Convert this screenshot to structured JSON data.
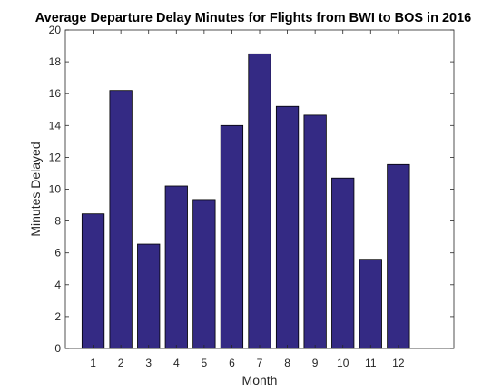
{
  "chart_data": {
    "type": "bar",
    "title": "Average Departure Delay Minutes for Flights from BWI to BOS in 2016",
    "xlabel": "Month",
    "ylabel": "Minutes Delayed",
    "categories": [
      "1",
      "2",
      "3",
      "4",
      "5",
      "6",
      "7",
      "8",
      "9",
      "10",
      "11",
      "12"
    ],
    "values": [
      8.45,
      16.2,
      6.55,
      10.2,
      9.35,
      14.0,
      18.5,
      15.2,
      14.65,
      10.7,
      5.6,
      11.55
    ],
    "ylim": [
      0,
      20
    ],
    "xlim": [
      0,
      14
    ],
    "yticks": [
      0,
      2,
      4,
      6,
      8,
      10,
      12,
      14,
      16,
      18,
      20
    ],
    "bar_color": "#342A84",
    "grid": false,
    "legend": "none"
  }
}
